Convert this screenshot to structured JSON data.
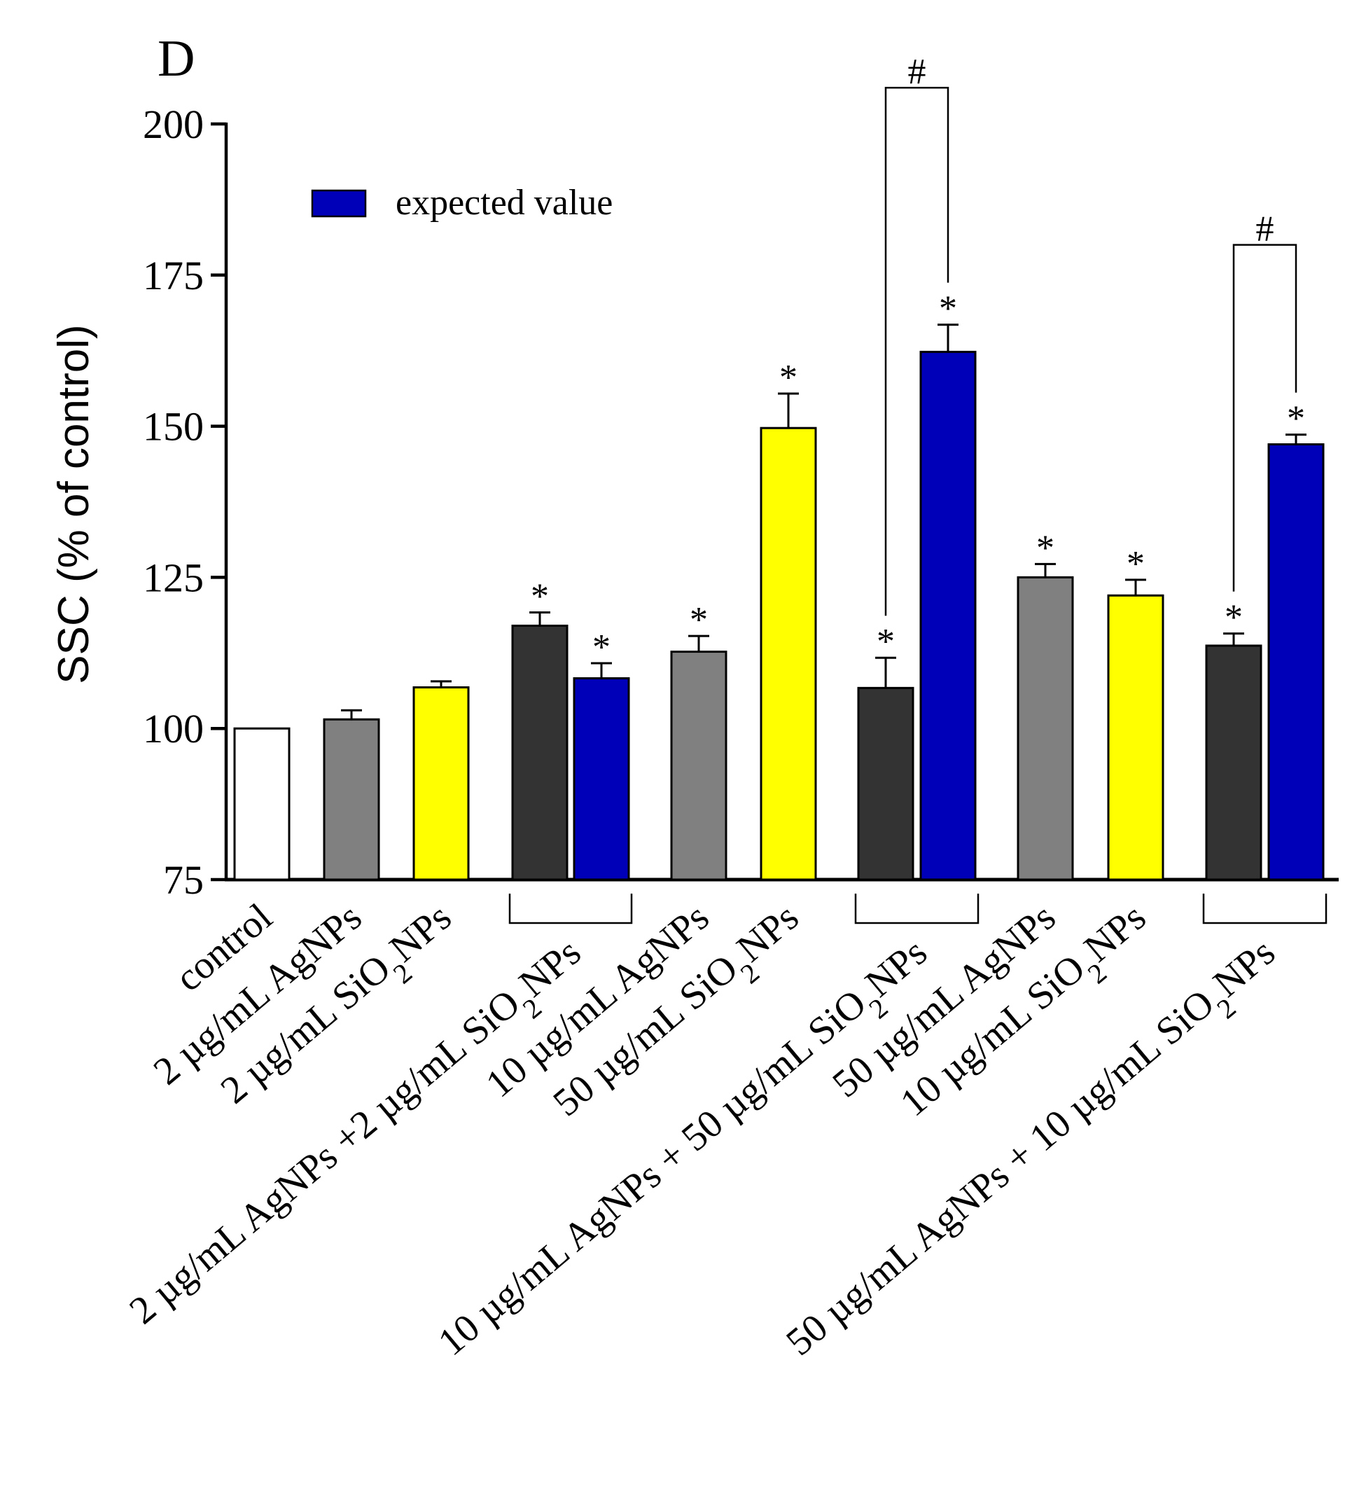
{
  "chart_data": {
    "type": "bar",
    "panel_label": "D",
    "ylabel": "SSC (% of control)",
    "ylim": [
      75,
      200
    ],
    "yticks": [
      75,
      100,
      125,
      150,
      175,
      200
    ],
    "legend": {
      "label": "expected value",
      "color": "#0000B8",
      "placement": "top-left"
    },
    "colors": {
      "control": "#FFFFFF",
      "AgNPs": "#808080",
      "SiO2NPs": "#FFFF00",
      "combination": "#333333",
      "expected": "#0000B8"
    },
    "bars": [
      {
        "label": "control",
        "value": 100,
        "err": 0,
        "color_key": "control",
        "star": false
      },
      {
        "label": "2 µg/mL AgNPs",
        "value": 101.5,
        "err": 1.5,
        "color_key": "AgNPs",
        "star": false
      },
      {
        "label": "2 µg/mL SiO2NPs",
        "value": 106.8,
        "err": 1.0,
        "color_key": "SiO2NPs",
        "star": false
      },
      {
        "label": "2 µg/mL AgNPs +2 µg/mL SiO2NPs",
        "value": 117,
        "err": 2.2,
        "color_key": "combination",
        "star": true
      },
      {
        "label": "",
        "value": 108.3,
        "err": 2.5,
        "color_key": "expected",
        "star": true
      },
      {
        "label": "10 µg/mL AgNPs",
        "value": 112.7,
        "err": 2.6,
        "color_key": "AgNPs",
        "star": true
      },
      {
        "label": "50 µg/mL SiO2NPs",
        "value": 149.7,
        "err": 5.7,
        "color_key": "SiO2NPs",
        "star": true
      },
      {
        "label": "10 µg/mL AgNPs + 50 µg/mL SiO2NPs",
        "value": 106.7,
        "err": 5.0,
        "color_key": "combination",
        "star": true
      },
      {
        "label": "",
        "value": 162.3,
        "err": 4.5,
        "color_key": "expected",
        "star": true
      },
      {
        "label": "50 µg/mL AgNPs",
        "value": 125,
        "err": 2.2,
        "color_key": "AgNPs",
        "star": true
      },
      {
        "label": "10 µg/mL SiO2NPs",
        "value": 122,
        "err": 2.6,
        "color_key": "SiO2NPs",
        "star": true
      },
      {
        "label": "50 µg/mL AgNPs + 10 µg/mL SiO2NPs",
        "value": 113.7,
        "err": 2.0,
        "color_key": "combination",
        "star": true
      },
      {
        "label": "",
        "value": 147,
        "err": 1.6,
        "color_key": "expected",
        "star": true
      }
    ],
    "group_brackets": [
      [
        3,
        4
      ],
      [
        7,
        8
      ],
      [
        11,
        12
      ]
    ],
    "significance": [
      {
        "from": 7,
        "to": 8,
        "symbol": "#",
        "level": 206
      },
      {
        "from": 11,
        "to": 12,
        "symbol": "#",
        "level": 180
      }
    ],
    "star_symbol": "*"
  }
}
